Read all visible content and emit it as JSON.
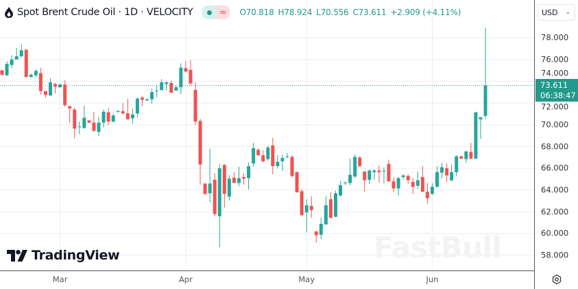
{
  "header": {
    "title": "Spot Brent Crude Oil · 1D · VELOCITY",
    "open_label": "O",
    "open": "70.818",
    "high_label": "H",
    "high": "78.924",
    "low_label": "L",
    "low": "70.556",
    "close_label": "C",
    "close": "73.611",
    "change": "+2.909 (+4.11%)",
    "market_status_icon": "market-open-dot-icon",
    "delayed_icon": "approx-icon"
  },
  "currency": {
    "selected": "USD"
  },
  "last_price": {
    "value": "73.611",
    "countdown": "06:38:47"
  },
  "logo": {
    "text": "TradingView"
  },
  "watermark": "FastBull",
  "colors": {
    "up": "#26a69a",
    "down": "#ef5350",
    "accent": "#22998a"
  },
  "chart_data": {
    "type": "candlestick",
    "title": "Spot Brent Crude Oil · 1D · VELOCITY",
    "ylim": [
      57,
      79.5
    ],
    "y_ticks": [
      "78.000",
      "76.000",
      "74.000",
      "72.000",
      "70.000",
      "68.000",
      "66.000",
      "64.000",
      "62.000",
      "60.000",
      "58.000"
    ],
    "x_tick_labels": [
      {
        "label": "Mar",
        "index": 12
      },
      {
        "label": "Apr",
        "index": 38
      },
      {
        "label": "May",
        "index": 63
      },
      {
        "label": "Jun",
        "index": 89
      }
    ],
    "grid": true,
    "ohlc": [
      [
        75.0,
        75.1,
        74.5,
        74.6
      ],
      [
        74.55,
        75.85,
        74.5,
        75.6
      ],
      [
        75.5,
        76.4,
        75.2,
        76.0
      ],
      [
        76.0,
        77.05,
        76.0,
        76.3
      ],
      [
        76.3,
        77.4,
        76.2,
        76.85
      ],
      [
        76.9,
        76.95,
        74.35,
        74.4
      ],
      [
        74.4,
        74.7,
        74.35,
        74.6
      ],
      [
        74.55,
        75.1,
        74.35,
        74.95
      ],
      [
        74.75,
        75.25,
        72.8,
        73.1
      ],
      [
        73.1,
        73.1,
        72.5,
        72.75
      ],
      [
        72.7,
        74.3,
        72.65,
        73.9
      ],
      [
        73.75,
        73.85,
        72.9,
        73.5
      ],
      [
        73.45,
        73.8,
        73.4,
        73.7
      ],
      [
        73.7,
        74.1,
        71.65,
        71.8
      ],
      [
        71.7,
        71.75,
        70.2,
        71.5
      ],
      [
        71.4,
        71.55,
        68.75,
        69.65
      ],
      [
        69.8,
        70.3,
        69.15,
        69.85
      ],
      [
        69.7,
        71.75,
        69.65,
        70.65
      ],
      [
        70.4,
        70.45,
        70.15,
        70.2
      ],
      [
        70.2,
        71.2,
        69.35,
        69.45
      ],
      [
        69.35,
        70.75,
        68.95,
        70.2
      ],
      [
        70.2,
        71.4,
        69.75,
        71.2
      ],
      [
        71.15,
        71.55,
        69.95,
        70.3
      ],
      [
        70.3,
        71.0,
        70.2,
        70.85
      ],
      [
        71.2,
        71.4,
        71.1,
        71.25
      ],
      [
        71.25,
        72.0,
        70.95,
        71.05
      ],
      [
        71.05,
        72.4,
        70.5,
        70.5
      ],
      [
        70.6,
        71.5,
        70.1,
        70.95
      ],
      [
        71.05,
        72.5,
        70.7,
        72.4
      ],
      [
        72.5,
        72.65,
        71.7,
        72.3
      ],
      [
        72.25,
        72.4,
        72.2,
        72.35
      ],
      [
        72.35,
        73.3,
        71.95,
        73.0
      ],
      [
        73.1,
        73.6,
        72.55,
        73.15
      ],
      [
        73.2,
        74.2,
        73.15,
        73.9
      ],
      [
        73.75,
        74.0,
        73.15,
        73.9
      ],
      [
        73.85,
        74.05,
        72.95,
        72.95
      ],
      [
        73.15,
        73.6,
        73.1,
        73.45
      ],
      [
        73.45,
        75.65,
        72.8,
        75.25
      ],
      [
        75.2,
        75.85,
        74.8,
        74.9
      ],
      [
        75.05,
        75.95,
        73.6,
        73.8
      ],
      [
        73.2,
        73.9,
        69.95,
        70.3
      ],
      [
        70.35,
        70.55,
        64.5,
        66.35
      ],
      [
        64.6,
        64.6,
        63.55,
        63.65
      ],
      [
        63.7,
        67.8,
        62.85,
        64.6
      ],
      [
        64.95,
        65.55,
        61.6,
        61.8
      ],
      [
        61.6,
        66.4,
        58.75,
        66.0
      ],
      [
        66.3,
        66.4,
        62.4,
        63.65
      ],
      [
        63.4,
        65.4,
        63.05,
        65.05
      ],
      [
        65.15,
        65.65,
        64.65,
        64.65
      ],
      [
        64.65,
        66.15,
        64.35,
        65.1
      ],
      [
        65.2,
        65.55,
        64.5,
        65.05
      ],
      [
        65.1,
        66.55,
        64.05,
        66.2
      ],
      [
        66.45,
        68.35,
        66.15,
        67.85
      ],
      [
        67.7,
        67.85,
        67.15,
        67.2
      ],
      [
        67.2,
        67.65,
        66.55,
        66.65
      ],
      [
        66.85,
        68.1,
        66.7,
        67.9
      ],
      [
        68.1,
        68.8,
        65.45,
        66.2
      ],
      [
        66.2,
        67.2,
        66.0,
        66.6
      ],
      [
        66.65,
        67.25,
        65.75,
        66.95
      ],
      [
        67.05,
        67.4,
        66.9,
        67.1
      ],
      [
        67.05,
        67.2,
        65.15,
        65.3
      ],
      [
        65.65,
        65.7,
        63.75,
        63.8
      ],
      [
        63.9,
        64.1,
        61.6,
        61.7
      ],
      [
        61.95,
        63.15,
        60.1,
        62.6
      ],
      [
        62.55,
        63.45,
        61.45,
        62.15
      ],
      [
        60.2,
        60.25,
        59.15,
        59.85
      ],
      [
        59.9,
        61.45,
        59.5,
        60.9
      ],
      [
        60.85,
        63.45,
        60.8,
        62.6
      ],
      [
        63.15,
        63.8,
        61.4,
        61.45
      ],
      [
        61.55,
        63.95,
        61.5,
        63.7
      ],
      [
        63.5,
        64.85,
        63.4,
        64.45
      ],
      [
        64.65,
        64.8,
        64.45,
        64.7
      ],
      [
        64.65,
        66.9,
        64.45,
        65.4
      ],
      [
        65.25,
        67.3,
        65.1,
        67.05
      ],
      [
        67.0,
        67.1,
        66.15,
        66.2
      ],
      [
        65.7,
        65.75,
        63.85,
        64.9
      ],
      [
        64.95,
        65.9,
        64.55,
        65.8
      ],
      [
        65.65,
        65.9,
        64.95,
        65.8
      ],
      [
        65.8,
        66.25,
        64.7,
        65.65
      ],
      [
        65.75,
        66.1,
        64.6,
        65.78
      ],
      [
        66.4,
        66.8,
        64.75,
        64.8
      ],
      [
        64.8,
        65.15,
        63.8,
        64.15
      ],
      [
        64.15,
        65.2,
        63.5,
        65.1
      ],
      [
        65.2,
        65.45,
        64.95,
        65.35
      ],
      [
        65.3,
        65.45,
        64.55,
        64.9
      ],
      [
        64.75,
        65.1,
        63.65,
        64.3
      ],
      [
        64.4,
        65.7,
        64.1,
        64.9
      ],
      [
        65.2,
        66.2,
        63.8,
        63.85
      ],
      [
        63.85,
        64.65,
        62.75,
        63.25
      ],
      [
        63.65,
        64.65,
        63.55,
        64.3
      ],
      [
        64.3,
        66.2,
        64.25,
        65.65
      ],
      [
        65.6,
        66.5,
        65.1,
        66.1
      ],
      [
        66.0,
        66.45,
        64.75,
        65.35
      ],
      [
        64.9,
        66.35,
        64.8,
        65.65
      ],
      [
        65.65,
        67.2,
        65.3,
        67.1
      ],
      [
        67.1,
        67.15,
        66.85,
        66.9
      ],
      [
        66.85,
        67.6,
        66.5,
        67.55
      ],
      [
        67.5,
        68.35,
        66.85,
        66.9
      ],
      [
        66.9,
        71.2,
        66.85,
        71.15
      ],
      [
        70.5,
        70.7,
        68.7,
        70.7
      ],
      [
        70.818,
        78.924,
        70.556,
        73.611
      ]
    ]
  }
}
